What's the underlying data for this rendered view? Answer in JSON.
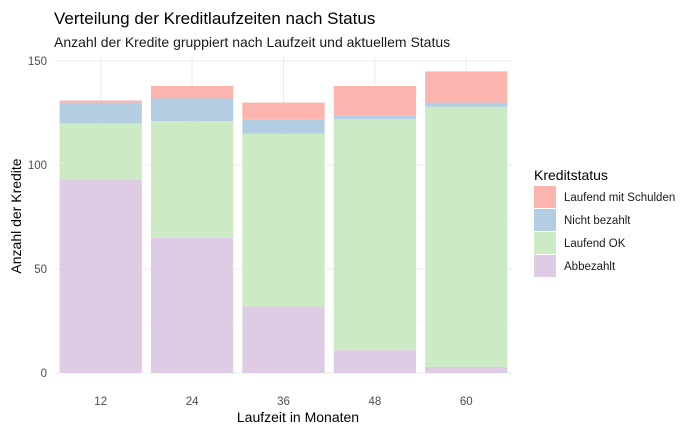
{
  "chart_data": {
    "type": "bar",
    "stacked": true,
    "title": "Verteilung der Kreditlaufzeiten nach Status",
    "subtitle": "Anzahl der Kredite gruppiert nach Laufzeit und aktuellem Status",
    "xlabel": "Laufzeit in Monaten",
    "ylabel": "Anzahl der Kredite",
    "categories": [
      "12",
      "24",
      "36",
      "48",
      "60"
    ],
    "ylim": [
      0,
      150
    ],
    "yticks": [
      0,
      50,
      100,
      150
    ],
    "grid": true,
    "legend_title": "Kreditstatus",
    "legend_position": "right",
    "series": [
      {
        "name": "Abbezahlt",
        "color": "#decbe4",
        "values": [
          93,
          65,
          32,
          11,
          3
        ]
      },
      {
        "name": "Laufend OK",
        "color": "#ccebc5",
        "values": [
          27,
          56,
          83,
          111,
          125
        ]
      },
      {
        "name": "Nicht bezahlt",
        "color": "#b3cde3",
        "values": [
          10,
          11,
          7,
          2,
          2
        ]
      },
      {
        "name": "Laufend mit Schulden",
        "color": "#fbb4ae",
        "values": [
          1,
          6,
          8,
          14,
          15
        ]
      }
    ]
  }
}
